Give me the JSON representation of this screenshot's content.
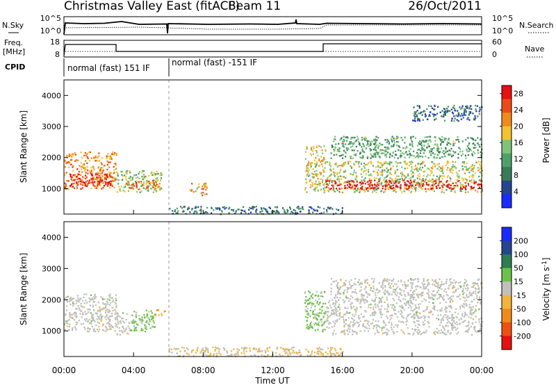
{
  "title": {
    "station": "Christmas Valley East (fitACF)",
    "beam": "Beam 11",
    "date": "26/Oct/2011"
  },
  "noise_panel": {
    "left_label": "N.Sky",
    "right_label": "N.Search",
    "left_ticks": [
      "10^5",
      "10^0"
    ],
    "right_ticks": [
      "10^5",
      "10^0"
    ]
  },
  "freq_panel": {
    "left_label_1": "Freq.",
    "left_label_2": "[MHz]",
    "right_label": "Nave",
    "left_ticks": [
      "18",
      "8"
    ],
    "right_ticks": [
      "60",
      "0"
    ]
  },
  "cpid": {
    "label": "CPID",
    "segments": [
      {
        "start_hour": 0,
        "end_hour": 6,
        "text": "normal (fast) 151 IF"
      },
      {
        "start_hour": 6,
        "end_hour": 24,
        "text": "normal (fast) -151 IF"
      }
    ]
  },
  "axes": {
    "ylabel": "Slant Range [km]",
    "yticks": [
      "1000",
      "2000",
      "3000",
      "4000"
    ],
    "xlabel": "Time UT",
    "xticks": [
      "00:00",
      "04:00",
      "08:00",
      "12:00",
      "16:00",
      "20:00",
      "00:00"
    ]
  },
  "colors": {
    "power": [
      "#1a2bff",
      "#26458f",
      "#3a7a5a",
      "#4ea06a",
      "#7fc37a",
      "#f2c230",
      "#f08a1a",
      "#ee4a18",
      "#e81010"
    ],
    "velocity": [
      "#1a2bff",
      "#26458f",
      "#2e7d4f",
      "#6cc24a",
      "#c0c0bc",
      "#f2b43a",
      "#f08a1a",
      "#ee5010",
      "#e81010"
    ]
  },
  "chart_data": [
    {
      "type": "heatmap",
      "title": "",
      "xlabel": "Time UT",
      "ylabel": "Slant Range [km]",
      "xlim": [
        0,
        24
      ],
      "ylim": [
        180,
        4500
      ],
      "colorbar": {
        "label": "Power [dB]",
        "ticks": [
          "4",
          "8",
          "12",
          "16",
          "20",
          "24",
          "28"
        ],
        "range": [
          0,
          30
        ]
      },
      "regions": [
        {
          "t0": 0.0,
          "t1": 3.0,
          "r0": 1000,
          "r1": 2200,
          "level": 22
        },
        {
          "t0": 0.3,
          "t1": 2.7,
          "r0": 1100,
          "r1": 1500,
          "level": 29
        },
        {
          "t0": 3.0,
          "t1": 5.6,
          "r0": 900,
          "r1": 1600,
          "level": 15
        },
        {
          "t0": 3.5,
          "t1": 5.5,
          "r0": 1000,
          "r1": 1300,
          "level": 22
        },
        {
          "t0": 7.2,
          "t1": 8.2,
          "r0": 800,
          "r1": 1200,
          "level": 20
        },
        {
          "t0": 6.0,
          "t1": 16.0,
          "r0": 200,
          "r1": 450,
          "level": 8
        },
        {
          "t0": 13.8,
          "t1": 15.0,
          "r0": 900,
          "r1": 2400,
          "level": 18
        },
        {
          "t0": 15.0,
          "t1": 24.0,
          "r0": 900,
          "r1": 1900,
          "level": 16
        },
        {
          "t0": 15.0,
          "t1": 24.0,
          "r0": 1000,
          "r1": 1300,
          "level": 29
        },
        {
          "t0": 15.3,
          "t1": 24.0,
          "r0": 2000,
          "r1": 2700,
          "level": 12
        },
        {
          "t0": 20.0,
          "t1": 24.0,
          "r0": 3200,
          "r1": 3700,
          "level": 7
        }
      ]
    },
    {
      "type": "heatmap",
      "title": "",
      "xlabel": "Time UT",
      "ylabel": "Slant Range [km]",
      "xlim": [
        0,
        24
      ],
      "ylim": [
        180,
        4500
      ],
      "colorbar": {
        "label": "Velocity [m s^-1]",
        "ticks": [
          "200",
          "100",
          "50",
          "15",
          "-15",
          "-50",
          "-100",
          "-200"
        ],
        "range": [
          -250,
          250
        ]
      },
      "regions": [
        {
          "t0": 0.0,
          "t1": 3.0,
          "r0": 1000,
          "r1": 2200,
          "level": 0
        },
        {
          "t0": 3.0,
          "t1": 3.8,
          "r0": 900,
          "r1": 1600,
          "level": 0
        },
        {
          "t0": 3.8,
          "t1": 5.2,
          "r0": 1000,
          "r1": 1700,
          "level": 45
        },
        {
          "t0": 5.2,
          "t1": 5.8,
          "r0": 1500,
          "r1": 1700,
          "level": -70
        },
        {
          "t0": 6.0,
          "t1": 16.0,
          "r0": 200,
          "r1": 500,
          "level": -30
        },
        {
          "t0": 13.8,
          "t1": 15.0,
          "r0": 1000,
          "r1": 2300,
          "level": 40
        },
        {
          "t0": 15.0,
          "t1": 24.0,
          "r0": 900,
          "r1": 2000,
          "level": 0
        },
        {
          "t0": 15.3,
          "t1": 24.0,
          "r0": 2000,
          "r1": 2700,
          "level": 0
        }
      ]
    }
  ]
}
